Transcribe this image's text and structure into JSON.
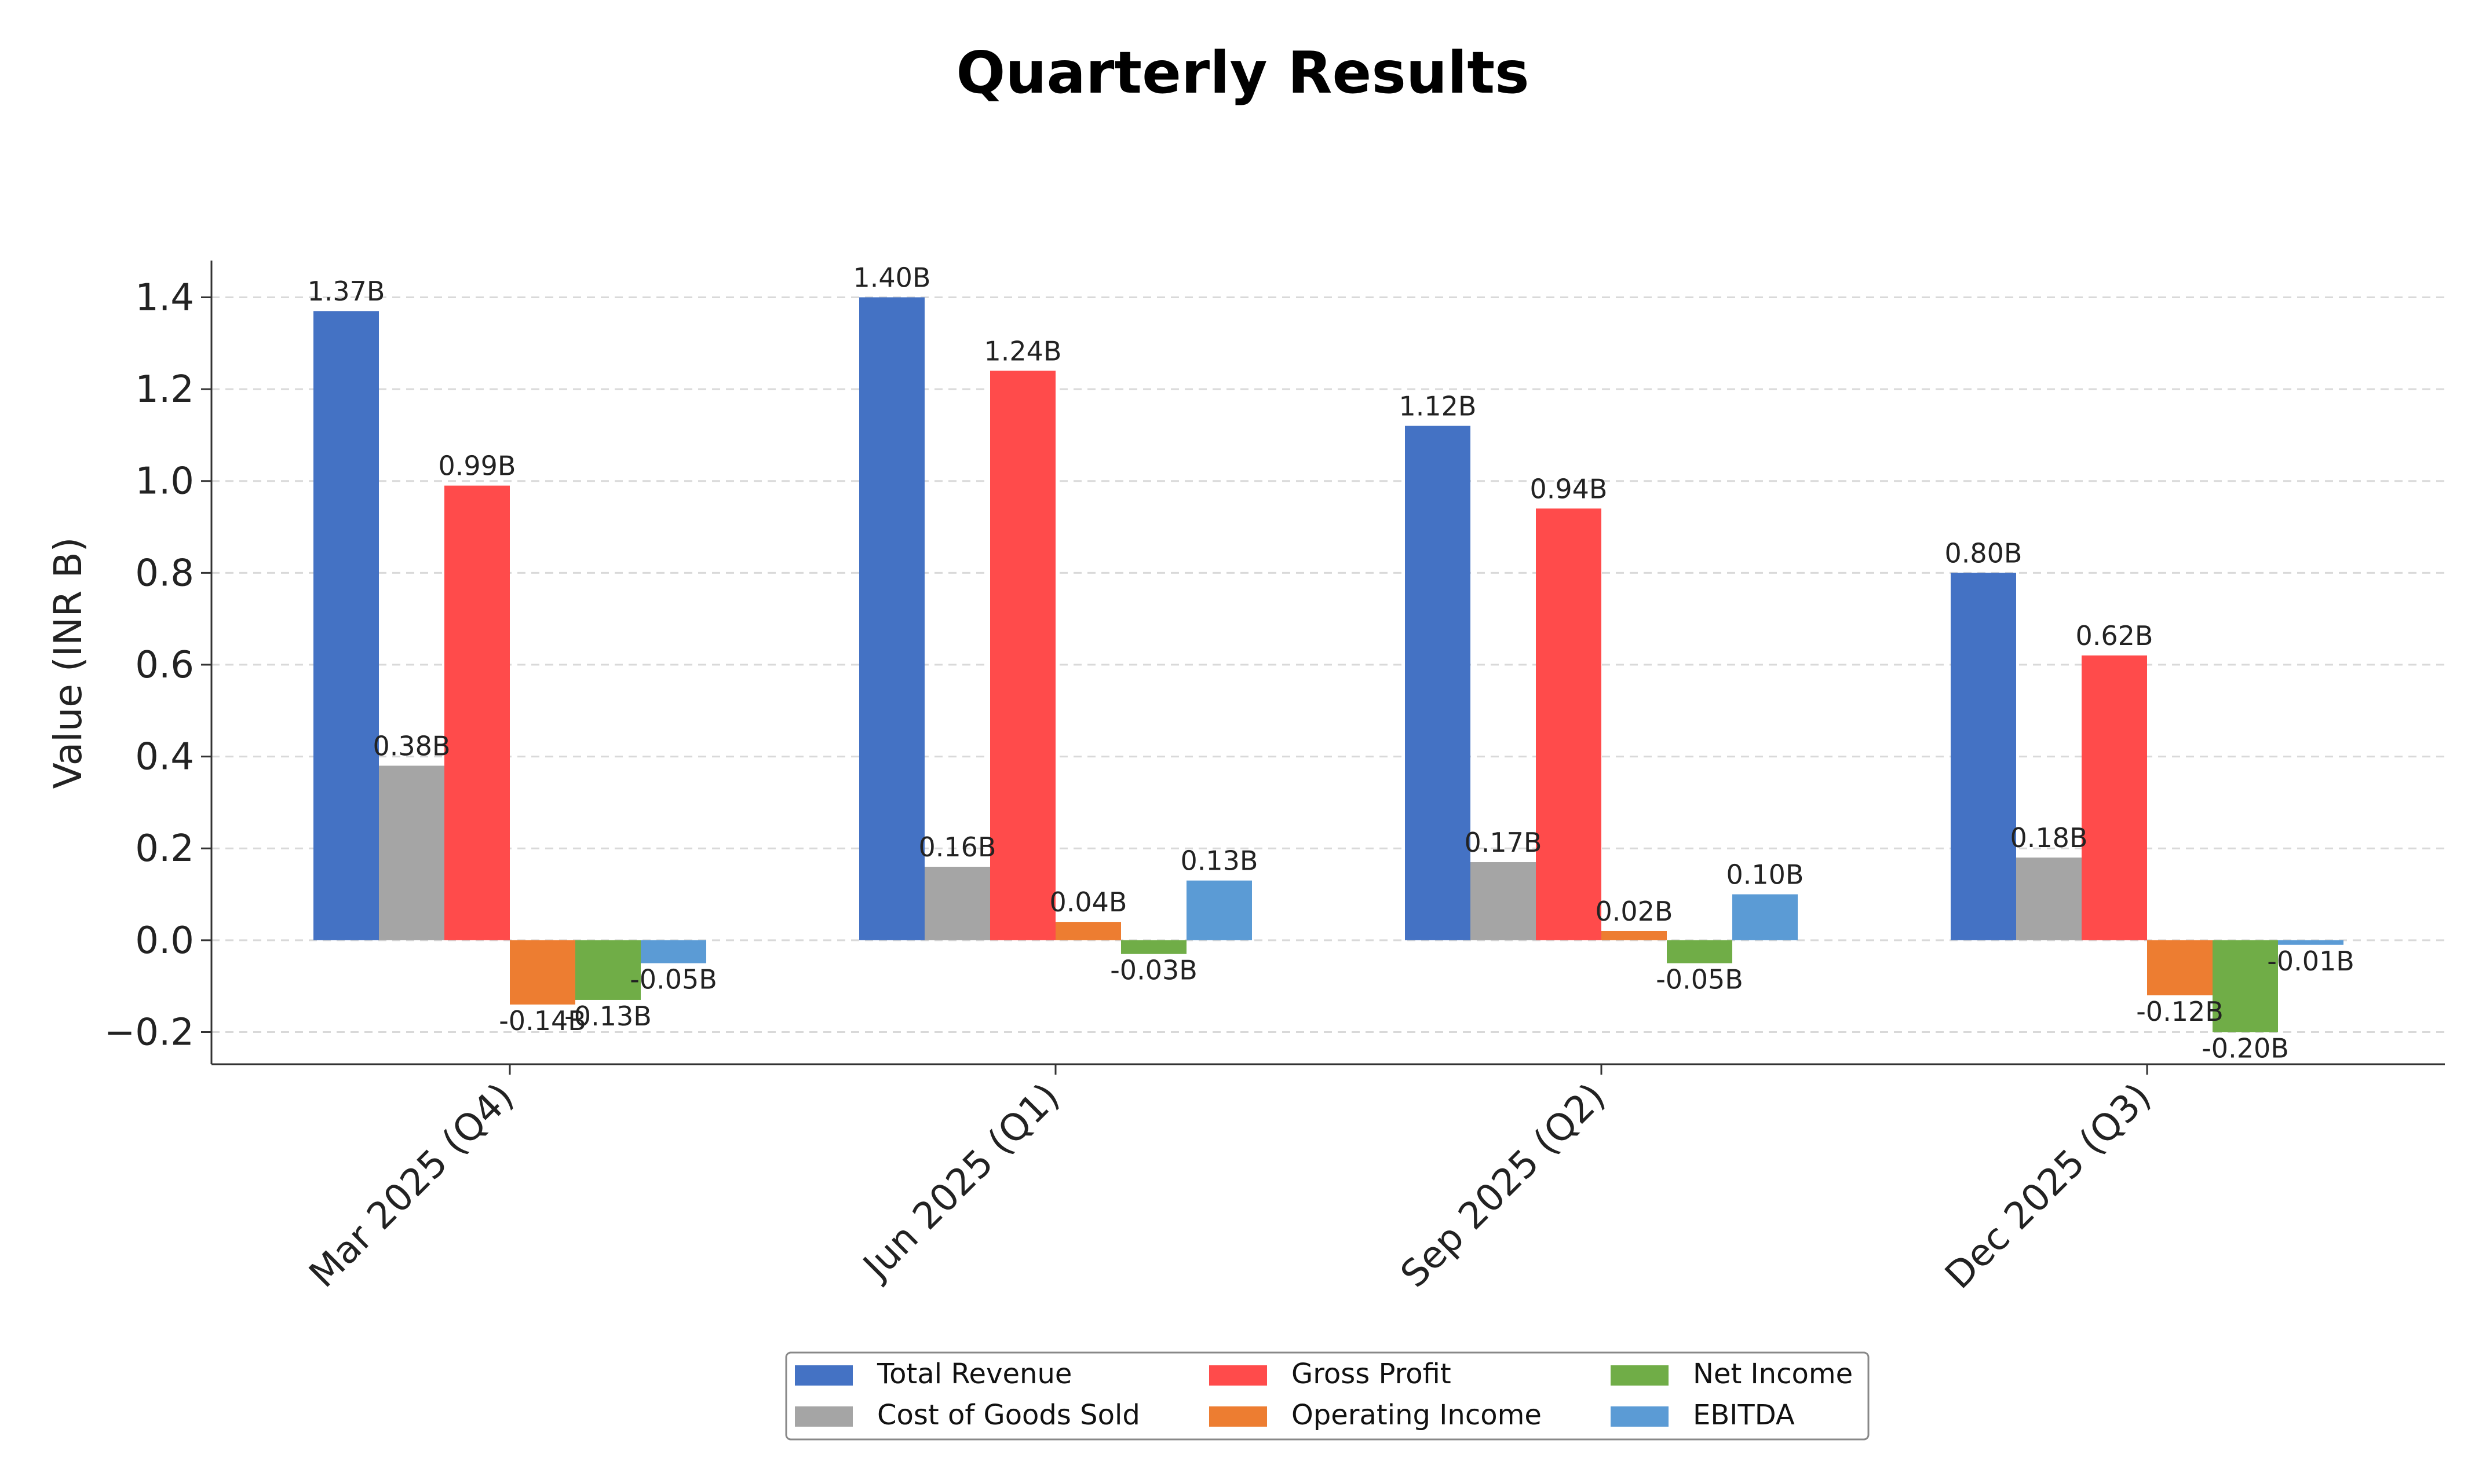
{
  "chart_data": {
    "type": "bar",
    "title": "Quarterly Results",
    "xlabel": "",
    "ylabel": "Value (INR B)",
    "ylim": [
      -0.27,
      1.48
    ],
    "yticks": [
      -0.2,
      0.0,
      0.2,
      0.4,
      0.6,
      0.8,
      1.0,
      1.2,
      1.4
    ],
    "ytick_labels": [
      "−0.2",
      "0.0",
      "0.2",
      "0.4",
      "0.6",
      "0.8",
      "1.0",
      "1.2",
      "1.4"
    ],
    "grid": true,
    "legend_position": "bottom-center",
    "categories": [
      "Mar 2025 (Q4)",
      "Jun 2025 (Q1)",
      "Sep 2025 (Q2)",
      "Dec 2025 (Q3)"
    ],
    "series": [
      {
        "name": "Total Revenue",
        "color": "#4472C4",
        "values": [
          1.37,
          1.4,
          1.12,
          0.8
        ],
        "labels": [
          "1.37B",
          "1.40B",
          "1.12B",
          "0.80B"
        ]
      },
      {
        "name": "Cost of Goods Sold",
        "color": "#A5A5A5",
        "values": [
          0.38,
          0.16,
          0.17,
          0.18
        ],
        "labels": [
          "0.38B",
          "0.16B",
          "0.17B",
          "0.18B"
        ]
      },
      {
        "name": "Gross Profit",
        "color": "#FF4B4B",
        "values": [
          0.99,
          1.24,
          0.94,
          0.62
        ],
        "labels": [
          "0.99B",
          "1.24B",
          "0.94B",
          "0.62B"
        ]
      },
      {
        "name": "Operating Income",
        "color": "#ED7D31",
        "values": [
          -0.14,
          0.04,
          0.02,
          -0.12
        ],
        "labels": [
          "-0.14B",
          "0.04B",
          "0.02B",
          "-0.12B"
        ]
      },
      {
        "name": "Net Income",
        "color": "#70AD47",
        "values": [
          -0.13,
          -0.03,
          -0.05,
          -0.2
        ],
        "labels": [
          "-0.13B",
          "-0.03B",
          "-0.05B",
          "-0.20B"
        ]
      },
      {
        "name": "EBITDA",
        "color": "#5B9BD5",
        "values": [
          -0.05,
          0.13,
          0.1,
          -0.01
        ],
        "labels": [
          "-0.05B",
          "0.13B",
          "0.10B",
          "-0.01B"
        ]
      }
    ]
  }
}
